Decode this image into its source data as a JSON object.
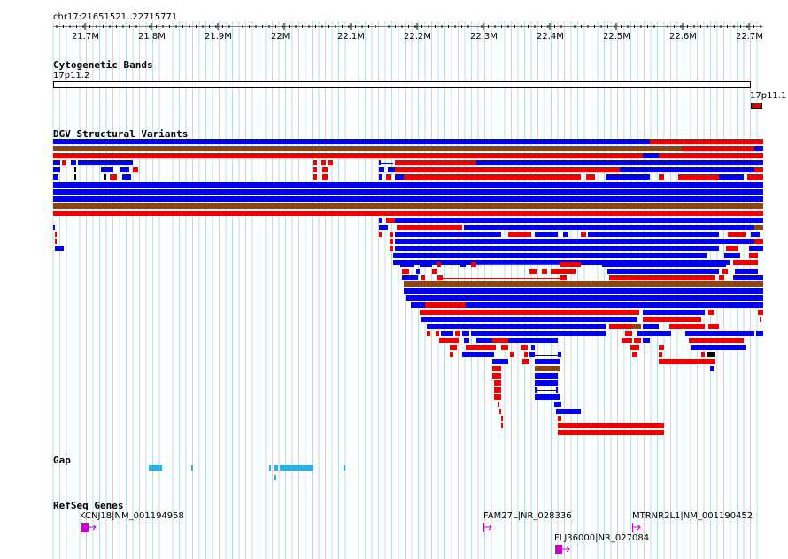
{
  "ruler": {
    "location": "chr17:21651521..22715771",
    "ticks": [
      "21.7M",
      "21.8M",
      "21.9M",
      "22M",
      "22.1M",
      "22.2M",
      "22.3M",
      "22.4M",
      "22.5M",
      "22.6M",
      "22.7M"
    ]
  },
  "tracks": {
    "cytoband": {
      "title": "Cytogenetic Bands",
      "band1": "17p11.2",
      "band2": "17p11.1"
    },
    "dgv": {
      "title": "DGV Structural Variants"
    },
    "gap": {
      "title": "Gap"
    },
    "refseq": {
      "title": "RefSeq Genes"
    }
  },
  "genes": [
    {
      "label": "KCNJ18|NM_001194958"
    },
    {
      "label": "FAM27L|NR_028336"
    },
    {
      "label": "MTRNR2L1|NM_001190452"
    },
    {
      "label": "FLJ36000|NR_027084"
    }
  ],
  "colors": {
    "gain": "#0000ee",
    "loss": "#ee0000",
    "complex": "#8b4513",
    "gap": "#2ab0e8",
    "gene": "#cc00cc",
    "grid": "#b8dce8",
    "cytoband_acen": "#dd0000"
  }
}
